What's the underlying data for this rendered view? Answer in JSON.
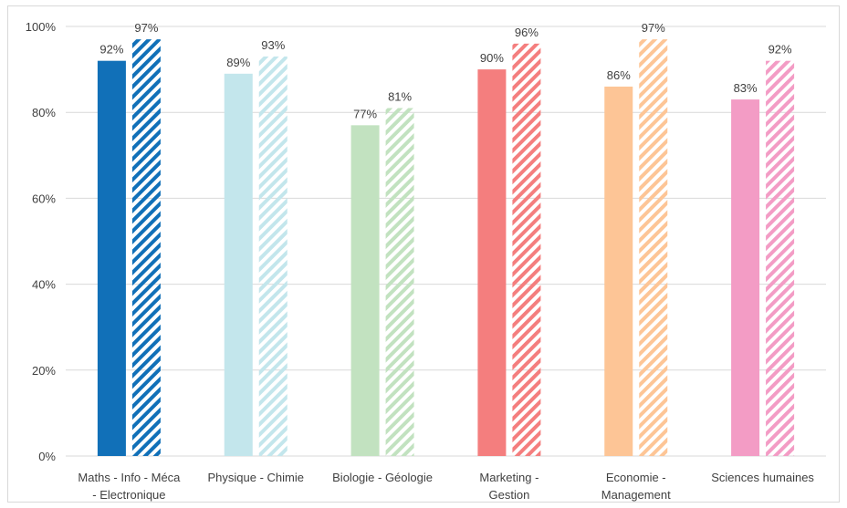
{
  "chart_data": {
    "type": "bar",
    "categories": [
      [
        "Maths - Info - Méca",
        "- Electronique"
      ],
      [
        "Physique - Chimie"
      ],
      [
        "Biologie - Géologie"
      ],
      [
        "Marketing -",
        "Gestion"
      ],
      [
        "Economie -",
        "Management"
      ],
      [
        "Sciences humaines"
      ]
    ],
    "series": [
      {
        "pattern": "solid",
        "values": [
          92,
          89,
          77,
          90,
          86,
          83
        ],
        "labels": [
          "92%",
          "89%",
          "77%",
          "90%",
          "86%",
          "83%"
        ]
      },
      {
        "pattern": "diagonal-hatch",
        "values": [
          97,
          93,
          81,
          96,
          97,
          92
        ],
        "labels": [
          "97%",
          "93%",
          "81%",
          "96%",
          "97%",
          "92%"
        ]
      }
    ],
    "category_colors": [
      "#1170b8",
      "#c3e6ec",
      "#c2e2c0",
      "#f47e7e",
      "#fdc596",
      "#f39cc5"
    ],
    "yticks": [
      "0%",
      "20%",
      "40%",
      "60%",
      "80%",
      "100%"
    ],
    "ylim": [
      0,
      100
    ],
    "grid": true,
    "title": "",
    "xlabel": "",
    "ylabel": ""
  }
}
